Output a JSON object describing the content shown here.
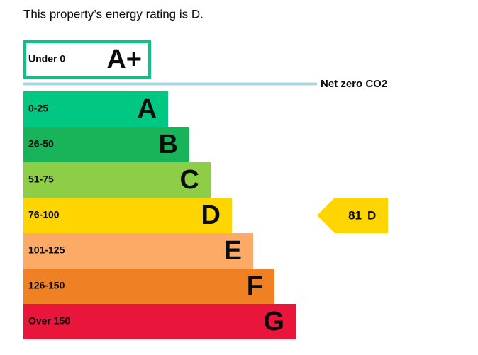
{
  "heading": "This property’s energy rating is D.",
  "top_band": {
    "range": "Under 0",
    "letter": "A+",
    "color": "#00c781"
  },
  "net_zero_label": "Net zero CO2",
  "bands": [
    {
      "range": "0-25",
      "letter": "A",
      "color": "#00c781"
    },
    {
      "range": "26-50",
      "letter": "B",
      "color": "#19b459"
    },
    {
      "range": "51-75",
      "letter": "C",
      "color": "#8dce46"
    },
    {
      "range": "76-100",
      "letter": "D",
      "color": "#ffd500"
    },
    {
      "range": "101-125",
      "letter": "E",
      "color": "#fcaa65"
    },
    {
      "range": "126-150",
      "letter": "F",
      "color": "#ef8023"
    },
    {
      "range": "Over 150",
      "letter": "G",
      "color": "#e9153b"
    }
  ],
  "current": {
    "score": 81,
    "letter": "D",
    "band_index": 3
  }
}
